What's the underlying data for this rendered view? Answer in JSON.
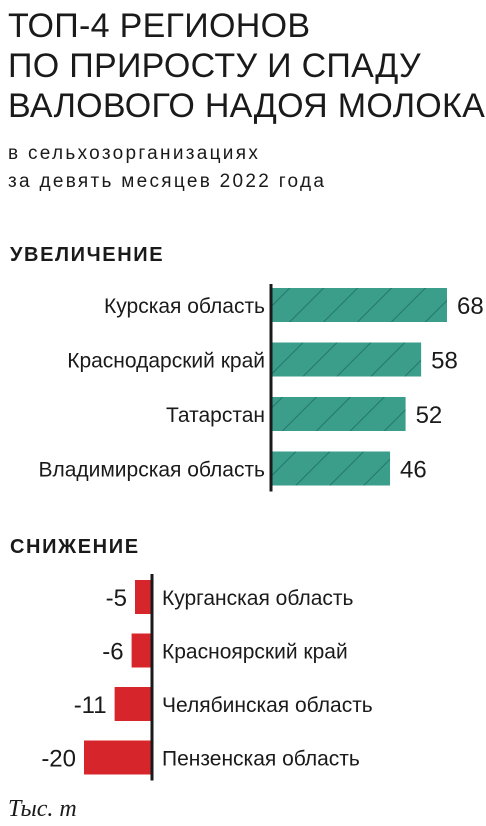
{
  "title_lines": [
    "ТОП-4 РЕГИОНОВ",
    "ПО ПРИРОСТУ И СПАДУ",
    "ВАЛОВОГО НАДОЯ МОЛОКА"
  ],
  "subtitle_lines": [
    "в сельхозорганизациях",
    "за девять месяцев 2022 года"
  ],
  "unit_label": "Тыс. т",
  "colors": {
    "increase": "#3a9e8b",
    "increase_hatch": "#24776a",
    "decrease": "#d7262b",
    "axis": "#1a1a1a"
  },
  "chart_data": [
    {
      "type": "bar",
      "orientation": "horizontal",
      "title": "УВЕЛИЧЕНИЕ",
      "categories": [
        "Курская область",
        "Краснодарский край",
        "Татарстан",
        "Владимирская область"
      ],
      "values": [
        68,
        58,
        52,
        46
      ],
      "data_labels": [
        "68",
        "58",
        "52",
        "46"
      ],
      "xlim": [
        0,
        68
      ]
    },
    {
      "type": "bar",
      "orientation": "horizontal",
      "title": "СНИЖЕНИЕ",
      "categories": [
        "Курганская область",
        "Красноярский край",
        "Челябинская область",
        "Пензенская область"
      ],
      "values": [
        -5,
        -6,
        -11,
        -20
      ],
      "data_labels": [
        "-5",
        "-6",
        "-11",
        "-20"
      ],
      "xlim": [
        -20,
        0
      ]
    }
  ]
}
